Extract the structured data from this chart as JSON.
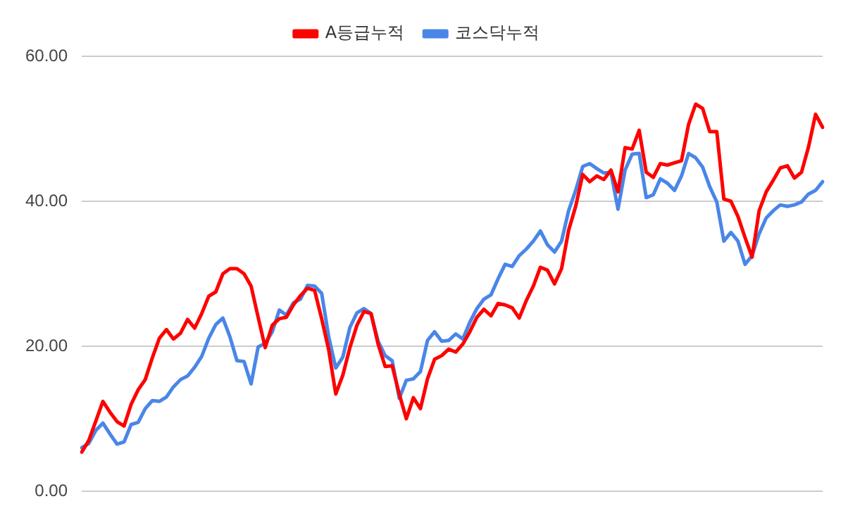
{
  "chart_data": {
    "type": "line",
    "categories": [
      null,
      null,
      null,
      null,
      null,
      null,
      null,
      null,
      null,
      null,
      null,
      null,
      null,
      null,
      null,
      null,
      null,
      null,
      null,
      null,
      null,
      null,
      null,
      null,
      null,
      null,
      null,
      null,
      null,
      null,
      null,
      null,
      null,
      null,
      null,
      null,
      null,
      null,
      null,
      null,
      null,
      null,
      null,
      null,
      null,
      null,
      null,
      null,
      null,
      null,
      null,
      null,
      null,
      null,
      null,
      null,
      null,
      null,
      null,
      null,
      null,
      null,
      null,
      null,
      null,
      null,
      null,
      null,
      null,
      null,
      null,
      null,
      null,
      null,
      null,
      null,
      null,
      null,
      null,
      null,
      null,
      null,
      null,
      null,
      null,
      null,
      null,
      null,
      null,
      null,
      null,
      null,
      null,
      null,
      null,
      null,
      null,
      null,
      null,
      null,
      null,
      null,
      null,
      null,
      null,
      null
    ],
    "series": [
      {
        "name": "A등급누적",
        "color": "#ff0000",
        "values": [
          5.4,
          7.0,
          9.7,
          12.4,
          10.9,
          9.6,
          9.0,
          12.0,
          14.0,
          15.4,
          18.4,
          21.1,
          22.3,
          21.0,
          21.8,
          23.7,
          22.5,
          24.5,
          26.9,
          27.5,
          30.0,
          30.7,
          30.7,
          30.0,
          28.3,
          24.0,
          19.8,
          22.9,
          23.8,
          24.0,
          25.7,
          27.0,
          28.0,
          27.7,
          23.8,
          19.5,
          13.4,
          16.0,
          19.8,
          22.9,
          24.8,
          24.5,
          20.3,
          17.2,
          17.3,
          13.4,
          10.0,
          12.9,
          11.4,
          15.5,
          18.2,
          18.7,
          19.6,
          19.2,
          20.3,
          22.0,
          24.0,
          25.1,
          24.2,
          25.9,
          25.7,
          25.3,
          23.9,
          26.3,
          28.3,
          30.9,
          30.5,
          28.6,
          30.7,
          36.0,
          39.3,
          43.7,
          42.7,
          43.5,
          43.0,
          44.3,
          41.3,
          47.4,
          47.2,
          49.8,
          44.0,
          43.3,
          45.2,
          45.0,
          45.3,
          45.6,
          50.6,
          53.4,
          52.8,
          49.6,
          49.6,
          40.3,
          40.0,
          37.9,
          35.0,
          32.3,
          38.7,
          41.3,
          42.9,
          44.6,
          44.9,
          43.2,
          44.0,
          47.5,
          52.0,
          50.2
        ]
      },
      {
        "name": "코스닥누적",
        "color": "#4a86e8",
        "values": [
          6.0,
          6.6,
          8.4,
          9.4,
          7.9,
          6.5,
          6.8,
          9.2,
          9.5,
          11.4,
          12.5,
          12.4,
          13.0,
          14.4,
          15.4,
          15.9,
          17.1,
          18.6,
          21.1,
          23.0,
          23.9,
          21.3,
          18.0,
          17.9,
          14.8,
          19.9,
          20.4,
          22.0,
          25.0,
          24.3,
          26.0,
          26.5,
          28.4,
          28.3,
          27.3,
          21.3,
          17.0,
          18.5,
          22.6,
          24.6,
          25.2,
          24.5,
          20.7,
          18.7,
          18.0,
          12.8,
          15.3,
          15.5,
          16.5,
          20.8,
          22.0,
          20.7,
          20.8,
          21.7,
          21.0,
          23.3,
          25.2,
          26.5,
          27.1,
          29.3,
          31.3,
          31.0,
          32.5,
          33.4,
          34.5,
          35.9,
          34.0,
          33.0,
          34.5,
          38.7,
          41.5,
          44.8,
          45.2,
          44.5,
          43.9,
          44.0,
          38.9,
          44.3,
          46.5,
          46.6,
          40.5,
          40.9,
          43.1,
          42.5,
          41.5,
          43.5,
          46.6,
          46.0,
          44.7,
          42.0,
          39.9,
          34.5,
          35.7,
          34.5,
          31.3,
          32.5,
          35.5,
          37.7,
          38.7,
          39.5,
          39.3,
          39.5,
          39.9,
          41.0,
          41.5,
          42.7
        ]
      }
    ],
    "ylim": [
      0,
      60
    ],
    "yticks": [
      {
        "value": 0,
        "label": "0.00"
      },
      {
        "value": 20,
        "label": "20.00"
      },
      {
        "value": 40,
        "label": "40.00"
      },
      {
        "value": 60,
        "label": "60.00"
      }
    ],
    "grid": "y",
    "legend": "top",
    "tick_labels": "y",
    "marker": "none",
    "line_style": "solid"
  }
}
